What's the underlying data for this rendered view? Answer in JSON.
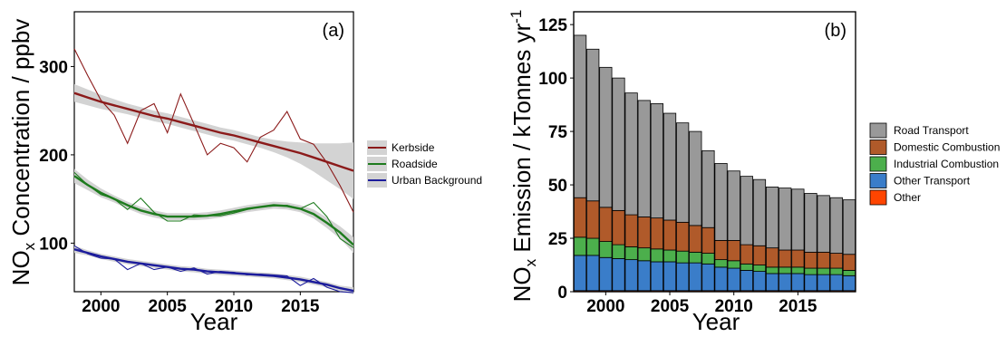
{
  "chart_data": [
    {
      "type": "line",
      "panel_label": "(a)",
      "xlabel": "Year",
      "ylabel_main": "NO",
      "ylabel_sub": "x",
      "ylabel_rest": " Concentration / ppbv",
      "xlim": [
        1998,
        2019
      ],
      "ylim": [
        45,
        362
      ],
      "xticks": [
        2000,
        2005,
        2010,
        2015
      ],
      "yticks": [
        100,
        200,
        300
      ],
      "x": [
        1998,
        1999,
        2000,
        2001,
        2002,
        2003,
        2004,
        2005,
        2006,
        2007,
        2008,
        2009,
        2010,
        2011,
        2012,
        2013,
        2014,
        2015,
        2016,
        2017,
        2018,
        2019
      ],
      "series": [
        {
          "name": "Kerbside",
          "color": "#8b1a1a",
          "values": [
            320,
            290,
            262,
            245,
            213,
            250,
            258,
            225,
            269,
            235,
            200,
            213,
            208,
            192,
            220,
            228,
            249,
            218,
            212,
            191,
            165,
            135
          ],
          "trend": [
            270,
            265,
            260,
            256,
            252,
            248,
            244,
            241,
            237,
            233,
            229,
            225,
            222,
            218,
            214,
            210,
            206,
            202,
            197,
            192,
            187,
            182
          ],
          "band": [
            10,
            9,
            8,
            7,
            6,
            6,
            6,
            6,
            6,
            6,
            6,
            6,
            6,
            6,
            6,
            7,
            9,
            12,
            16,
            21,
            26,
            32
          ]
        },
        {
          "name": "Roadside",
          "color": "#1e7b1e",
          "values": [
            180,
            166,
            155,
            150,
            138,
            151,
            135,
            125,
            125,
            132,
            131,
            131,
            134,
            138,
            141,
            142,
            143,
            139,
            146,
            130,
            105,
            95
          ],
          "trend": [
            176,
            166,
            157,
            150,
            143,
            137,
            133,
            130,
            130,
            130,
            131,
            133,
            136,
            139,
            141,
            143,
            142,
            139,
            133,
            123,
            112,
            98
          ],
          "band": [
            8,
            6,
            5,
            4,
            4,
            4,
            4,
            4,
            4,
            4,
            4,
            4,
            4,
            4,
            4,
            4,
            4,
            4,
            5,
            6,
            7,
            9
          ]
        },
        {
          "name": "Urban Background",
          "color": "#1c1c9c",
          "values": [
            97,
            88,
            83,
            82,
            70,
            77,
            70,
            73,
            68,
            72,
            65,
            68,
            67,
            64,
            65,
            64,
            63,
            52,
            60,
            50,
            45,
            44
          ],
          "trend": [
            93,
            89,
            85,
            82,
            79,
            77,
            75,
            73,
            71,
            70,
            68,
            67,
            66,
            65,
            64,
            63,
            61,
            59,
            56,
            53,
            49,
            46
          ],
          "band": [
            4,
            3,
            3,
            3,
            3,
            3,
            3,
            3,
            3,
            3,
            3,
            3,
            3,
            3,
            3,
            3,
            3,
            3,
            3,
            3,
            3,
            4
          ]
        }
      ]
    },
    {
      "type": "bar",
      "stacked": true,
      "panel_label": "(b)",
      "xlabel": "Year",
      "ylabel_main": "NO",
      "ylabel_sub": "x",
      "ylabel_rest": " Emission / kTonnes yr",
      "ylabel_sup": "-1",
      "xlim": [
        1997.5,
        2019.5
      ],
      "ylim": [
        0,
        131
      ],
      "xticks": [
        2000,
        2005,
        2010,
        2015
      ],
      "yticks": [
        0,
        25,
        50,
        75,
        100,
        125
      ],
      "x": [
        1998,
        1999,
        2000,
        2001,
        2002,
        2003,
        2004,
        2005,
        2006,
        2007,
        2008,
        2009,
        2010,
        2011,
        2012,
        2013,
        2014,
        2015,
        2016,
        2017,
        2018,
        2019
      ],
      "series": [
        {
          "name": "Other",
          "color": "#ff4500",
          "values": [
            0.5,
            0.5,
            0.5,
            0.5,
            0.5,
            0.5,
            0.5,
            0.5,
            0.5,
            0.5,
            0.5,
            0.5,
            0.5,
            0.5,
            0.5,
            0.5,
            0.5,
            0.5,
            0.5,
            0.5,
            0.5,
            0.5
          ]
        },
        {
          "name": "Other Transport",
          "color": "#3a7dc9",
          "values": [
            16.5,
            16.5,
            15.5,
            15,
            14.5,
            14,
            13.5,
            13.5,
            13,
            13,
            12.5,
            11,
            10.5,
            9.5,
            9,
            8,
            8,
            8,
            7.5,
            7.5,
            7.5,
            7
          ]
        },
        {
          "name": "Industrial Combustion",
          "color": "#4caf4c",
          "values": [
            8.5,
            8,
            7.5,
            6.5,
            6,
            6,
            6,
            5.5,
            5.5,
            5,
            5,
            3.5,
            3.5,
            3,
            3,
            3,
            3,
            3,
            3,
            3,
            3,
            2.5
          ]
        },
        {
          "name": "Domestic Combustion",
          "color": "#b05a2a",
          "values": [
            18.5,
            17.5,
            16,
            16,
            15,
            14.5,
            14.5,
            14,
            13.5,
            12.5,
            12,
            9,
            9.5,
            9,
            9,
            9,
            8,
            8,
            7.5,
            7.5,
            7,
            7.5
          ]
        },
        {
          "name": "Road Transport",
          "color": "#999999",
          "values": [
            76,
            71,
            65.5,
            62,
            57,
            54.5,
            53.5,
            50,
            46.5,
            44,
            36,
            36,
            32.5,
            32,
            31,
            28.5,
            29,
            28.5,
            27.5,
            26.5,
            26,
            25.5
          ]
        }
      ],
      "legend_order": [
        "Road Transport",
        "Domestic Combustion",
        "Industrial Combustion",
        "Other Transport",
        "Other"
      ]
    }
  ]
}
